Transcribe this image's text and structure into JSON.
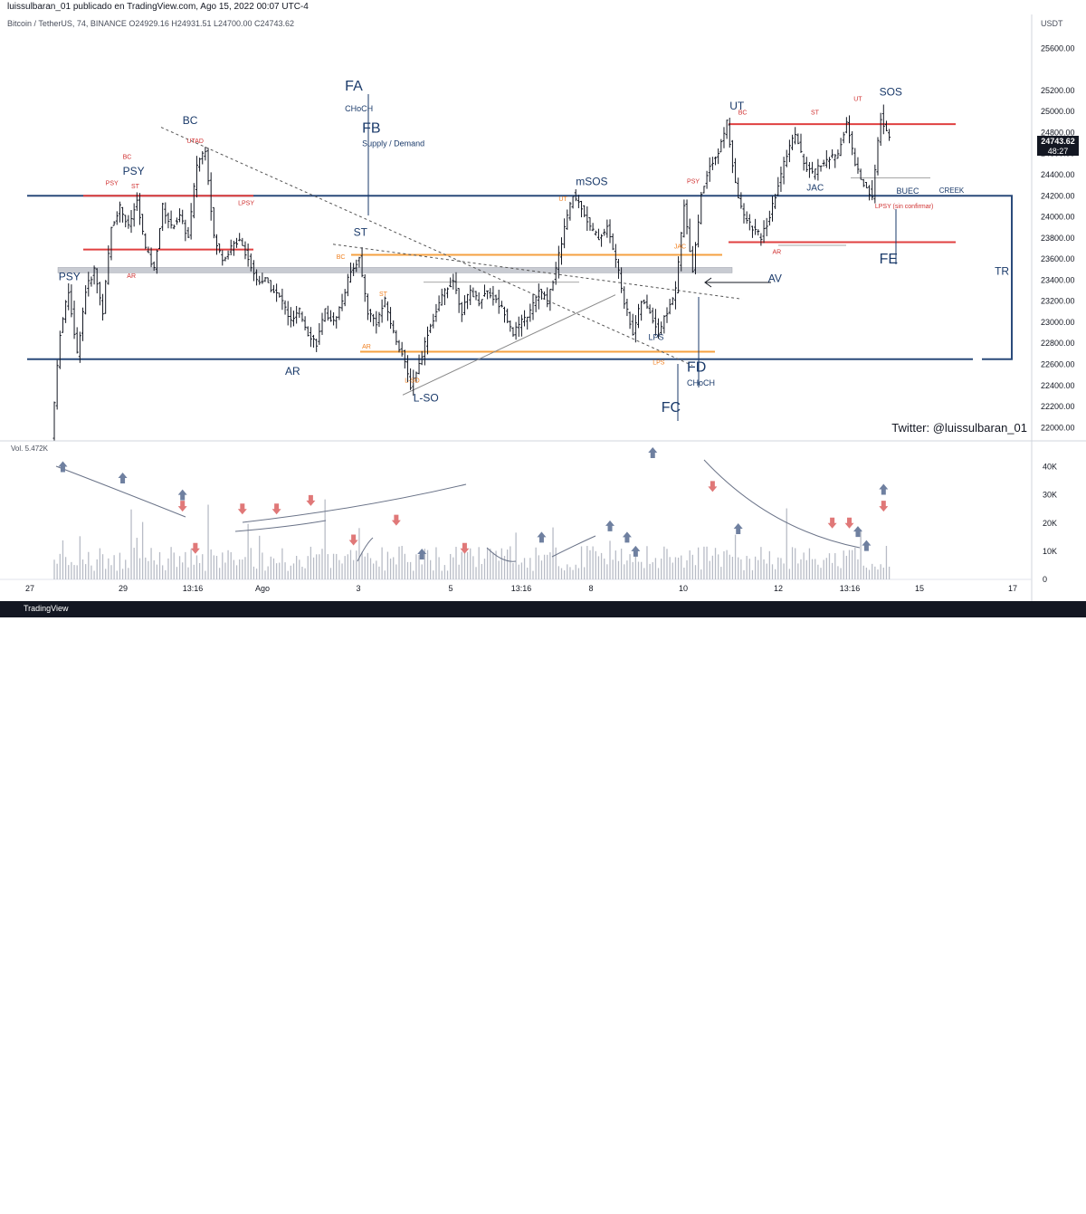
{
  "header": {
    "publish_line": "luissulbaran_01 publicado en TradingView.com, Ago 15, 2022 00:07 UTC-4",
    "symbol_line": "Bitcoin / TetherUS, 74, BINANCE O24929.16 H24931.51 L24700.00 C24743.62",
    "currency": "USDT"
  },
  "last_price": {
    "price": "24743.62",
    "countdown": "48:27"
  },
  "footer": {
    "brand": "TradingView"
  },
  "twitter": "Twitter: @luissulbaran_01",
  "volume_label": "Vol. 5.472K",
  "colors": {
    "up": "#5a6a82",
    "down": "#e08080",
    "range_line": "#2a4a7a",
    "red_line": "#e04040",
    "orange_line": "#f5a040",
    "label_blue": "#1a3a6a",
    "label_red": "#d03030",
    "label_orange": "#f08020"
  },
  "chart_data": {
    "type": "candlestick",
    "price_axis": {
      "min": 21900,
      "max": 25800,
      "ticks": [
        "25600.00",
        "25200.00",
        "25000.00",
        "24800.00",
        "24600.00",
        "24400.00",
        "24200.00",
        "24000.00",
        "23800.00",
        "23600.00",
        "23400.00",
        "23200.00",
        "23000.00",
        "22800.00",
        "22600.00",
        "22400.00",
        "22200.00",
        "22000.00"
      ]
    },
    "volume_axis": {
      "ticks": [
        "40K",
        "30K",
        "20K",
        "10K",
        "0"
      ]
    },
    "x_ticks": [
      "27",
      "29",
      "13:16",
      "Ago",
      "3",
      "5",
      "13:16",
      "8",
      "10",
      "12",
      "13:16",
      "15",
      "17"
    ],
    "levels": [
      {
        "name": "range_top",
        "price": 24200
      },
      {
        "name": "range_bottom",
        "price": 22650
      },
      {
        "name": "red_1",
        "price": 24200
      },
      {
        "name": "red_2",
        "price": 23680
      },
      {
        "name": "orange_1",
        "price": 23640
      },
      {
        "name": "orange_2",
        "price": 22720
      },
      {
        "name": "red_3",
        "price": 24880
      },
      {
        "name": "red_4",
        "price": 23760
      }
    ],
    "price_path": [
      {
        "t": 0,
        "p": 21900
      },
      {
        "t": 2,
        "p": 22900
      },
      {
        "t": 4,
        "p": 23300
      },
      {
        "t": 6,
        "p": 22700
      },
      {
        "t": 8,
        "p": 23300
      },
      {
        "t": 10,
        "p": 23500
      },
      {
        "t": 12,
        "p": 23100
      },
      {
        "t": 14,
        "p": 23900
      },
      {
        "t": 16,
        "p": 24100
      },
      {
        "t": 18,
        "p": 23900
      },
      {
        "t": 20,
        "p": 24150
      },
      {
        "t": 22,
        "p": 23700
      },
      {
        "t": 24,
        "p": 23500
      },
      {
        "t": 26,
        "p": 24100
      },
      {
        "t": 28,
        "p": 23900
      },
      {
        "t": 30,
        "p": 24000
      },
      {
        "t": 32,
        "p": 23800
      },
      {
        "t": 34,
        "p": 24500
      },
      {
        "t": 36,
        "p": 24650
      },
      {
        "t": 38,
        "p": 23800
      },
      {
        "t": 40,
        "p": 23600
      },
      {
        "t": 42,
        "p": 23700
      },
      {
        "t": 44,
        "p": 23800
      },
      {
        "t": 46,
        "p": 23600
      },
      {
        "t": 48,
        "p": 23400
      },
      {
        "t": 50,
        "p": 23400
      },
      {
        "t": 52,
        "p": 23300
      },
      {
        "t": 54,
        "p": 23200
      },
      {
        "t": 56,
        "p": 23000
      },
      {
        "t": 58,
        "p": 23100
      },
      {
        "t": 60,
        "p": 22900
      },
      {
        "t": 62,
        "p": 22800
      },
      {
        "t": 64,
        "p": 23100
      },
      {
        "t": 66,
        "p": 23000
      },
      {
        "t": 68,
        "p": 23200
      },
      {
        "t": 70,
        "p": 23500
      },
      {
        "t": 72,
        "p": 23600
      },
      {
        "t": 74,
        "p": 23100
      },
      {
        "t": 76,
        "p": 23000
      },
      {
        "t": 78,
        "p": 23200
      },
      {
        "t": 80,
        "p": 22900
      },
      {
        "t": 82,
        "p": 22700
      },
      {
        "t": 84,
        "p": 22400
      },
      {
        "t": 86,
        "p": 22600
      },
      {
        "t": 88,
        "p": 22900
      },
      {
        "t": 90,
        "p": 23100
      },
      {
        "t": 92,
        "p": 23300
      },
      {
        "t": 94,
        "p": 23400
      },
      {
        "t": 96,
        "p": 23100
      },
      {
        "t": 98,
        "p": 23300
      },
      {
        "t": 100,
        "p": 23200
      },
      {
        "t": 102,
        "p": 23300
      },
      {
        "t": 104,
        "p": 23200
      },
      {
        "t": 106,
        "p": 23100
      },
      {
        "t": 108,
        "p": 22900
      },
      {
        "t": 110,
        "p": 23000
      },
      {
        "t": 112,
        "p": 23100
      },
      {
        "t": 114,
        "p": 23300
      },
      {
        "t": 116,
        "p": 23200
      },
      {
        "t": 118,
        "p": 23500
      },
      {
        "t": 120,
        "p": 23900
      },
      {
        "t": 122,
        "p": 24200
      },
      {
        "t": 124,
        "p": 24100
      },
      {
        "t": 126,
        "p": 23900
      },
      {
        "t": 128,
        "p": 23800
      },
      {
        "t": 130,
        "p": 23900
      },
      {
        "t": 132,
        "p": 23600
      },
      {
        "t": 134,
        "p": 23200
      },
      {
        "t": 136,
        "p": 22900
      },
      {
        "t": 138,
        "p": 23200
      },
      {
        "t": 140,
        "p": 23100
      },
      {
        "t": 142,
        "p": 22900
      },
      {
        "t": 144,
        "p": 23100
      },
      {
        "t": 146,
        "p": 23300
      },
      {
        "t": 148,
        "p": 24100
      },
      {
        "t": 150,
        "p": 23500
      },
      {
        "t": 152,
        "p": 24200
      },
      {
        "t": 154,
        "p": 24500
      },
      {
        "t": 156,
        "p": 24600
      },
      {
        "t": 158,
        "p": 24900
      },
      {
        "t": 160,
        "p": 24300
      },
      {
        "t": 162,
        "p": 24000
      },
      {
        "t": 164,
        "p": 23900
      },
      {
        "t": 166,
        "p": 23800
      },
      {
        "t": 168,
        "p": 24000
      },
      {
        "t": 170,
        "p": 24300
      },
      {
        "t": 172,
        "p": 24600
      },
      {
        "t": 174,
        "p": 24800
      },
      {
        "t": 176,
        "p": 24500
      },
      {
        "t": 178,
        "p": 24400
      },
      {
        "t": 180,
        "p": 24500
      },
      {
        "t": 182,
        "p": 24550
      },
      {
        "t": 184,
        "p": 24600
      },
      {
        "t": 186,
        "p": 24900
      },
      {
        "t": 188,
        "p": 24500
      },
      {
        "t": 190,
        "p": 24300
      },
      {
        "t": 192,
        "p": 24200
      },
      {
        "t": 194,
        "p": 24950
      },
      {
        "t": 196,
        "p": 24743
      }
    ],
    "annotations_blue": [
      {
        "text": "PSY",
        "t": 1,
        "p": 23400,
        "size": 12
      },
      {
        "text": "PSY",
        "t": 16,
        "p": 24400,
        "size": 12
      },
      {
        "text": "BC",
        "t": 30,
        "p": 24880,
        "size": 12
      },
      {
        "text": "AR",
        "t": 54,
        "p": 22500,
        "size": 12
      },
      {
        "text": "FA",
        "t": 68,
        "p": 25200,
        "size": 16
      },
      {
        "text": "CHoCH",
        "t": 68,
        "p": 25000,
        "size": 9
      },
      {
        "text": "FB",
        "t": 72,
        "p": 24800,
        "size": 16
      },
      {
        "text": "Supply  /  Demand",
        "t": 72,
        "p": 24670,
        "size": 9
      },
      {
        "text": "ST",
        "t": 70,
        "p": 23820,
        "size": 12
      },
      {
        "text": "L-SO",
        "t": 84,
        "p": 22250,
        "size": 12
      },
      {
        "text": "mSOS",
        "t": 122,
        "p": 24300,
        "size": 12
      },
      {
        "text": "LPS",
        "t": 139,
        "p": 22830,
        "size": 9
      },
      {
        "text": "FD",
        "t": 148,
        "p": 22530,
        "size": 16
      },
      {
        "text": "CHoCH",
        "t": 148,
        "p": 22400,
        "size": 9
      },
      {
        "text": "FC",
        "t": 142,
        "p": 22150,
        "size": 16
      },
      {
        "text": "AV",
        "t": 167,
        "p": 23380,
        "size": 12
      },
      {
        "text": "UT",
        "t": 158,
        "p": 25020,
        "size": 12
      },
      {
        "text": "JAC",
        "t": 176,
        "p": 24250,
        "size": 10
      },
      {
        "text": "SOS",
        "t": 193,
        "p": 25150,
        "size": 12
      },
      {
        "text": "BUEC",
        "t": 197,
        "p": 24220,
        "size": 9
      },
      {
        "text": "CREEK",
        "t": 207,
        "p": 24230,
        "size": 8
      },
      {
        "text": "FE",
        "t": 193,
        "p": 23560,
        "size": 16
      },
      {
        "text": "TR",
        "t": 220,
        "p": 23450,
        "size": 12
      }
    ],
    "annotations_red": [
      {
        "text": "BC",
        "t": 16,
        "p": 24550,
        "size": 7
      },
      {
        "text": "PSY",
        "t": 12,
        "p": 24300,
        "size": 7
      },
      {
        "text": "ST",
        "t": 18,
        "p": 24270,
        "size": 7
      },
      {
        "text": "UTAD",
        "t": 31,
        "p": 24700,
        "size": 7
      },
      {
        "text": "LPSY",
        "t": 43,
        "p": 24110,
        "size": 7
      },
      {
        "text": "AR",
        "t": 17,
        "p": 23420,
        "size": 7
      },
      {
        "text": "PSY",
        "t": 148,
        "p": 24320,
        "size": 7
      },
      {
        "text": "BC",
        "t": 160,
        "p": 24970,
        "size": 7
      },
      {
        "text": "ST",
        "t": 177,
        "p": 24970,
        "size": 7
      },
      {
        "text": "UT",
        "t": 187,
        "p": 25100,
        "size": 7
      },
      {
        "text": "AR",
        "t": 168,
        "p": 23650,
        "size": 7
      },
      {
        "text": "LPSY (sin confirmar)",
        "t": 192,
        "p": 24080,
        "size": 7
      }
    ],
    "annotations_orange": [
      {
        "text": "BC",
        "t": 66,
        "p": 23600,
        "size": 7
      },
      {
        "text": "ST",
        "t": 76,
        "p": 23250,
        "size": 7
      },
      {
        "text": "AR",
        "t": 72,
        "p": 22750,
        "size": 7
      },
      {
        "text": "L-SO",
        "t": 82,
        "p": 22430,
        "size": 7
      },
      {
        "text": "UT",
        "t": 118,
        "p": 24150,
        "size": 7
      },
      {
        "text": "JAC",
        "t": 145,
        "p": 23700,
        "size": 7
      },
      {
        "text": "LPS",
        "t": 140,
        "p": 22600,
        "size": 7
      }
    ],
    "volume_arrows": [
      {
        "t": 2,
        "dir": "up",
        "v": 40000
      },
      {
        "t": 16,
        "dir": "up",
        "v": 36000
      },
      {
        "t": 30,
        "dir": "up",
        "v": 30000
      },
      {
        "t": 30,
        "dir": "down",
        "v": 26000
      },
      {
        "t": 33,
        "dir": "down",
        "v": 11000
      },
      {
        "t": 44,
        "dir": "down",
        "v": 25000
      },
      {
        "t": 52,
        "dir": "down",
        "v": 25000
      },
      {
        "t": 60,
        "dir": "down",
        "v": 28000
      },
      {
        "t": 70,
        "dir": "down",
        "v": 14000
      },
      {
        "t": 80,
        "dir": "down",
        "v": 21000
      },
      {
        "t": 86,
        "dir": "up",
        "v": 9000
      },
      {
        "t": 96,
        "dir": "down",
        "v": 11000
      },
      {
        "t": 114,
        "dir": "up",
        "v": 15000
      },
      {
        "t": 130,
        "dir": "up",
        "v": 19000
      },
      {
        "t": 134,
        "dir": "up",
        "v": 15000
      },
      {
        "t": 136,
        "dir": "up",
        "v": 10000
      },
      {
        "t": 140,
        "dir": "up",
        "v": 45000
      },
      {
        "t": 154,
        "dir": "down",
        "v": 33000
      },
      {
        "t": 160,
        "dir": "up",
        "v": 18000
      },
      {
        "t": 182,
        "dir": "down",
        "v": 20000
      },
      {
        "t": 186,
        "dir": "down",
        "v": 20000
      },
      {
        "t": 188,
        "dir": "up",
        "v": 17000
      },
      {
        "t": 190,
        "dir": "up",
        "v": 12000
      },
      {
        "t": 194,
        "dir": "up",
        "v": 32000
      },
      {
        "t": 194,
        "dir": "down",
        "v": 26000
      }
    ]
  }
}
